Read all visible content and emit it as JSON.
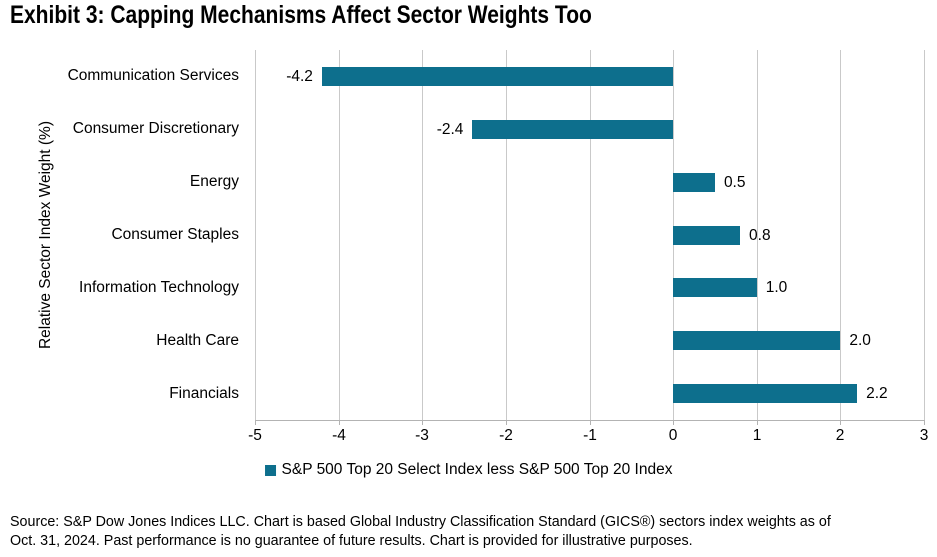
{
  "title": "Exhibit 3: Capping Mechanisms Affect Sector Weights Too",
  "chart_data": {
    "type": "bar",
    "orientation": "horizontal",
    "title": "Exhibit 3: Capping Mechanisms Affect Sector Weights Too",
    "categories": [
      "Communication Services",
      "Consumer Discretionary",
      "Energy",
      "Consumer Staples",
      "Information Technology",
      "Health Care",
      "Financials"
    ],
    "values": [
      -4.2,
      -2.4,
      0.5,
      0.8,
      1.0,
      2.0,
      2.2
    ],
    "value_labels": [
      "-4.2",
      "-2.4",
      "0.5",
      "0.8",
      "1.0",
      "2.0",
      "2.2"
    ],
    "series_name": "S&P 500 Top 20 Select Index less S&P 500 Top 20 Index",
    "xlabel": "",
    "ylabel": "Relative Sector Index Weight (%)",
    "xlim": [
      -5,
      3
    ],
    "xticks": [
      -5,
      -4,
      -3,
      -2,
      -1,
      0,
      1,
      2,
      3
    ],
    "grid": true,
    "legend_position": "bottom-center"
  },
  "legend": {
    "label": "S&P 500 Top 20 Select Index less S&P 500 Top 20 Index"
  },
  "footer": {
    "lines": [
      "Source: S&P Dow Jones Indices LLC. Chart is based Global Industry Classification Standard (GICS®) sectors index weights as of",
      "Oct. 31, 2024. Past performance is no guarantee of future results. Chart is provided for illustrative purposes."
    ]
  },
  "colors": {
    "bar": "#0d6f8d",
    "gridline": "#c9c9c9",
    "axis": "#b3b3b3",
    "text": "#000000",
    "background": "#ffffff"
  }
}
